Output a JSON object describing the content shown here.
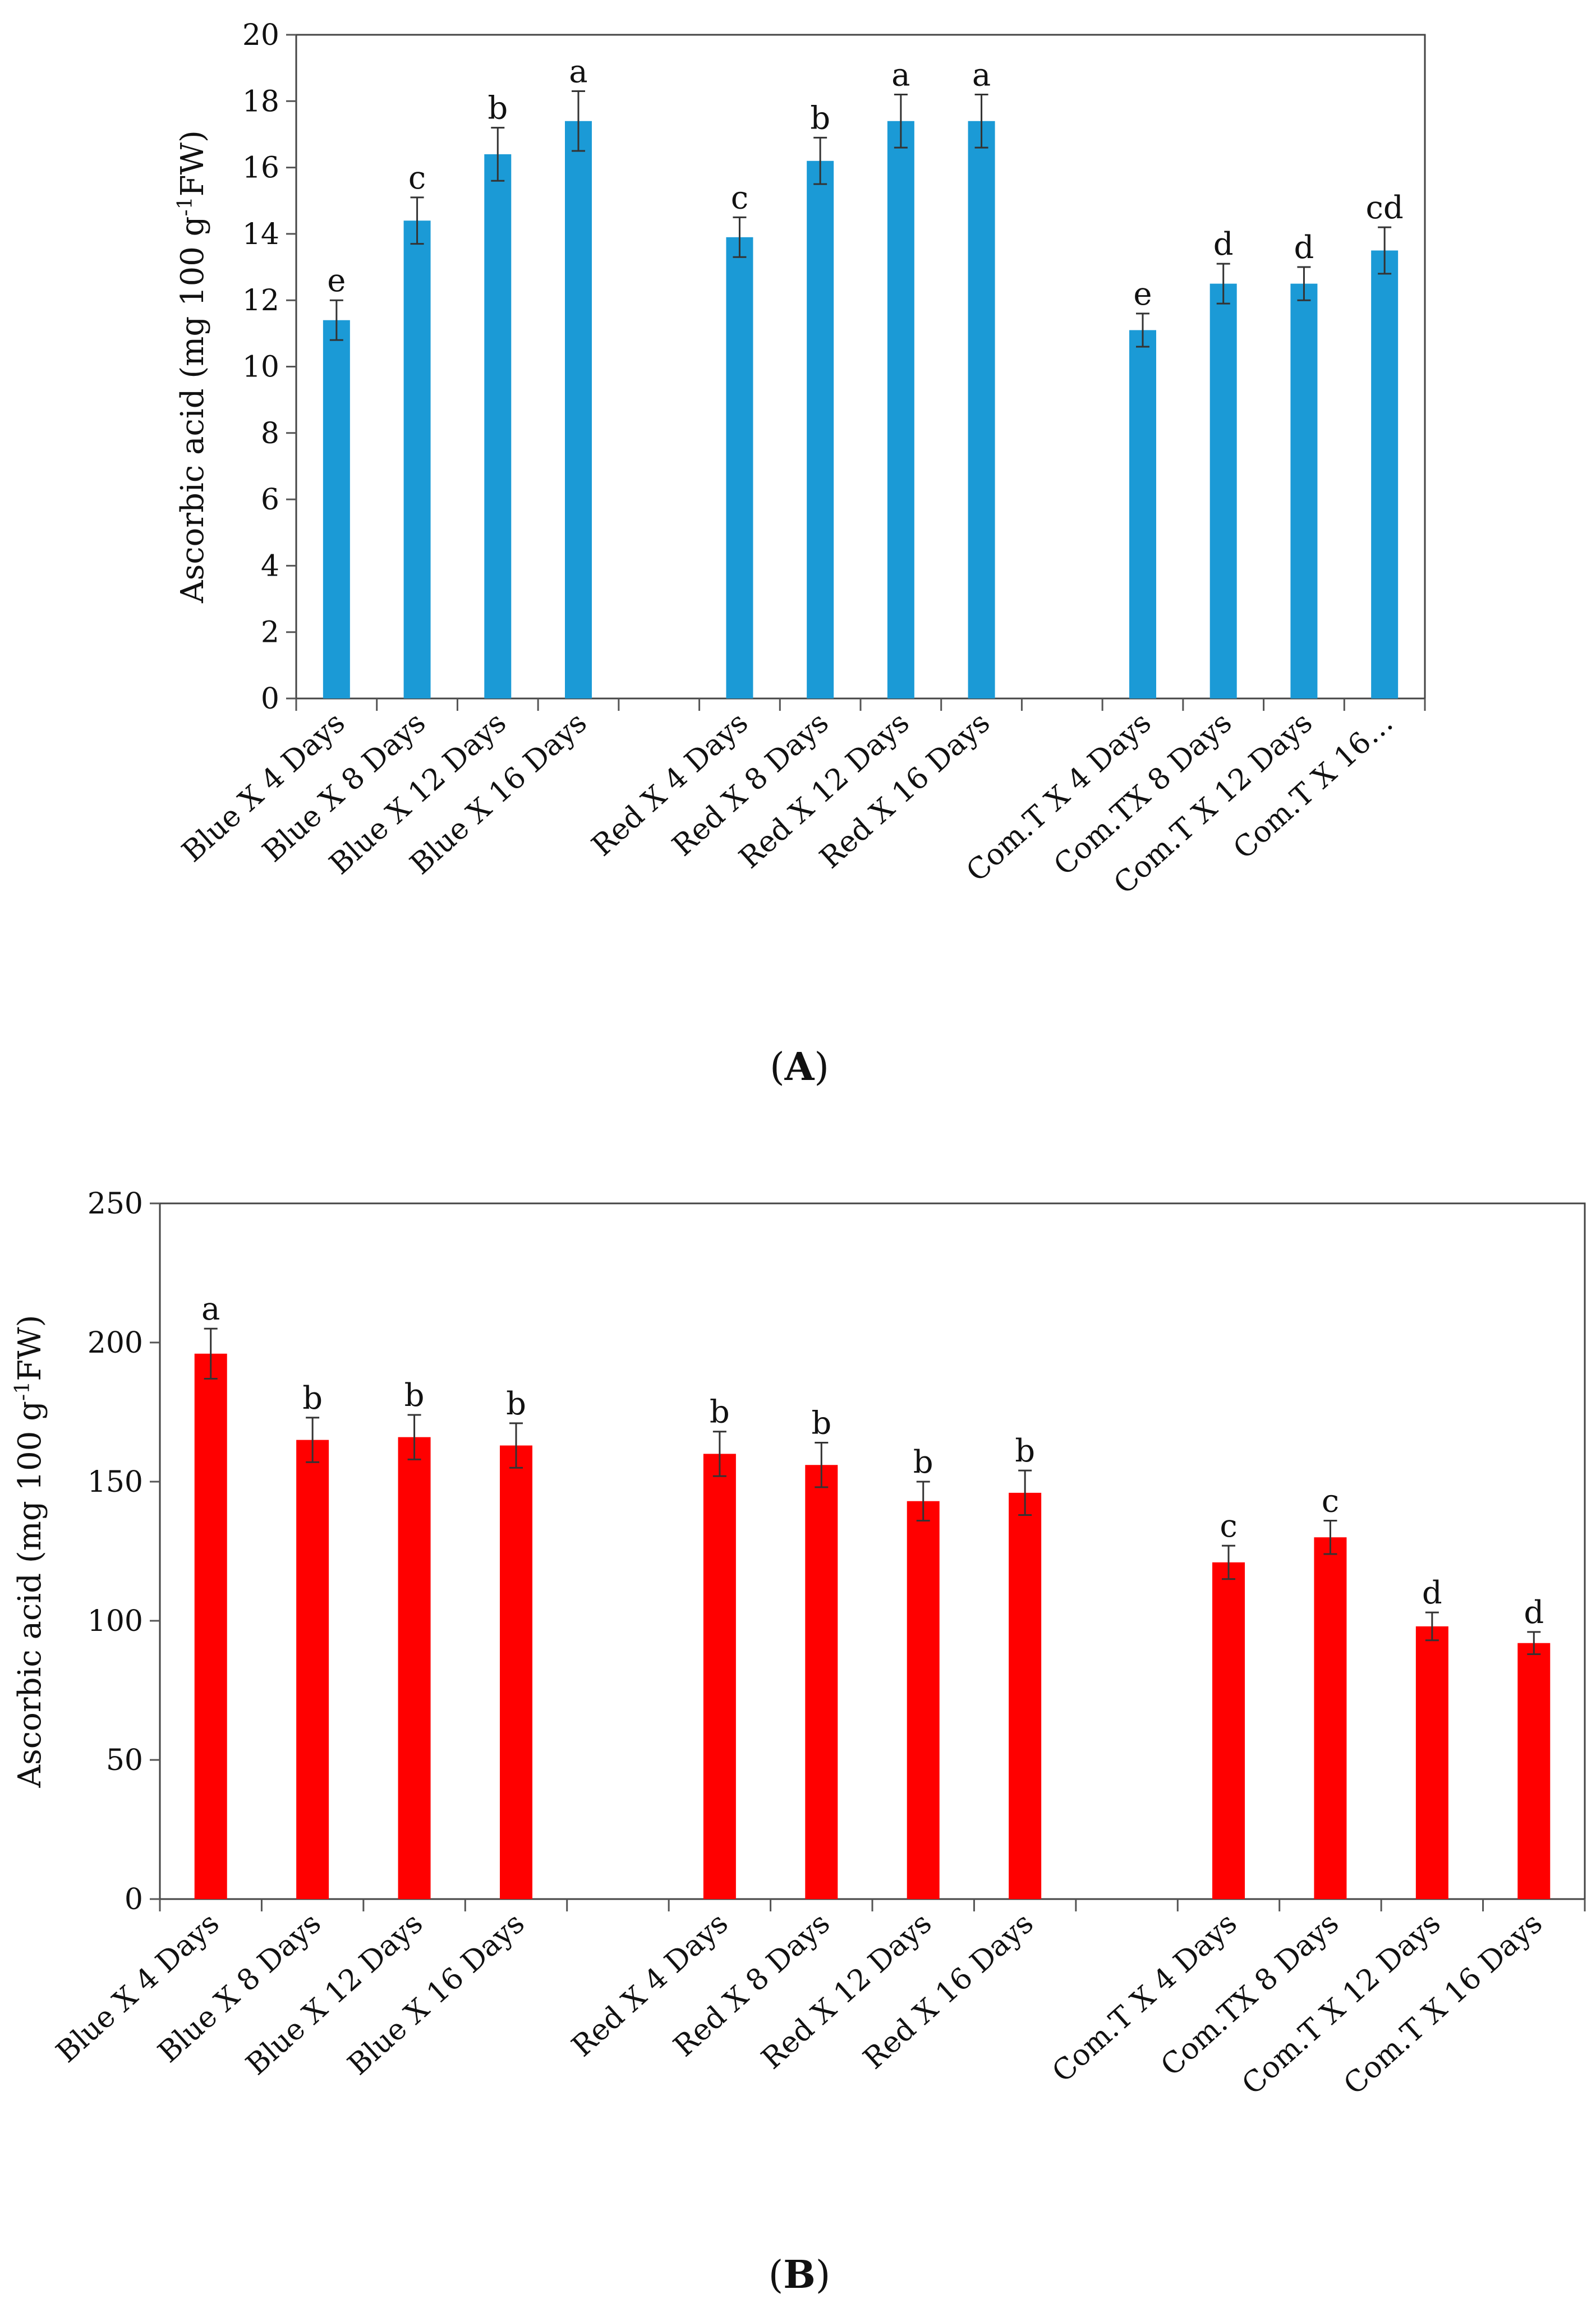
{
  "panel_labels": [
    "A",
    "B"
  ],
  "colors": {
    "panel_a_bars": "#1b9ad6",
    "panel_b_bars": "#ff0000",
    "axes": "#555555"
  },
  "chart_data": [
    {
      "type": "bar",
      "panel": "A",
      "title": "",
      "xlabel": "",
      "ylabel": "Ascorbic acid (mg 100 g-1FW)",
      "ylabel_parts": {
        "pre": "Ascorbic acid (mg 100 g",
        "sup": "-1",
        "post": "FW)"
      },
      "ylim": [
        0,
        20
      ],
      "yticks": [
        0,
        2,
        4,
        6,
        8,
        10,
        12,
        14,
        16,
        18,
        20
      ],
      "grid": false,
      "legend": "none",
      "categories": [
        "Blue X 4 Days",
        "Blue X 8 Days",
        "Blue X 12 Days",
        "Blue X 16 Days",
        "",
        "Red X 4 Days",
        "Red X 8 Days",
        "Red X 12 Days",
        "Red X 16 Days",
        "",
        "Com.T X 4 Days",
        "Com.TX 8 Days",
        "Com.T X 12 Days",
        "Com.T  X 16…"
      ],
      "values": [
        11.4,
        14.4,
        16.4,
        17.4,
        null,
        13.9,
        16.2,
        17.4,
        17.4,
        null,
        11.1,
        12.5,
        12.5,
        13.5
      ],
      "errors": [
        0.6,
        0.7,
        0.8,
        0.9,
        null,
        0.6,
        0.7,
        0.8,
        0.8,
        null,
        0.5,
        0.6,
        0.5,
        0.7
      ],
      "significance": [
        "e",
        "c",
        "b",
        "a",
        "",
        "c",
        "b",
        "a",
        "a",
        "",
        "e",
        "d",
        "d",
        "cd"
      ]
    },
    {
      "type": "bar",
      "panel": "B",
      "title": "",
      "xlabel": "",
      "ylabel": "Ascorbic acid (mg 100 g-1FW)",
      "ylabel_parts": {
        "pre": "Ascorbic acid (mg 100 g",
        "sup": "-1",
        "post": "FW)"
      },
      "ylim": [
        0,
        250
      ],
      "yticks": [
        0,
        50,
        100,
        150,
        200,
        250
      ],
      "grid": false,
      "legend": "none",
      "categories": [
        "Blue X 4 Days",
        "Blue X 8 Days",
        "Blue X 12 Days",
        "Blue X 16 Days",
        "",
        "Red X 4 Days",
        "Red X 8 Days",
        "Red X 12 Days",
        "Red X 16 Days",
        "",
        "Com.T X 4 Days",
        "Com.TX 8 Days",
        "Com.T X 12 Days",
        "Com.T  X 16 Days"
      ],
      "values": [
        196,
        165,
        166,
        163,
        null,
        160,
        156,
        143,
        146,
        null,
        121,
        130,
        98,
        92
      ],
      "errors": [
        9,
        8,
        8,
        8,
        null,
        8,
        8,
        7,
        8,
        null,
        6,
        6,
        5,
        4
      ],
      "significance": [
        "a",
        "b",
        "b",
        "b",
        "",
        "b",
        "b",
        "b",
        "b",
        "",
        "c",
        "c",
        "d",
        "d"
      ]
    }
  ]
}
